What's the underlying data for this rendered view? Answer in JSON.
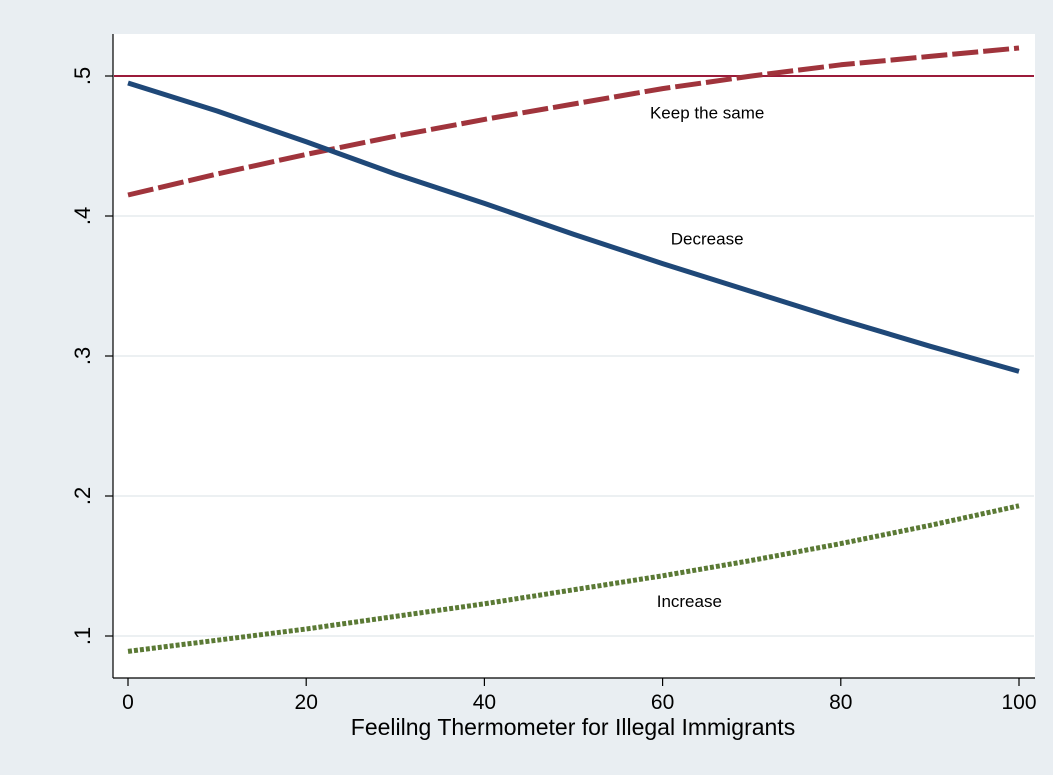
{
  "chart_data": {
    "type": "line",
    "title": "",
    "xlabel": "Feelilng Thermometer for Illegal Immigrants",
    "ylabel": "",
    "xlim": [
      0,
      100
    ],
    "ylim": [
      0.09,
      0.53
    ],
    "grid": true,
    "x_ticks": [
      0,
      20,
      40,
      60,
      80,
      100
    ],
    "x_tick_labels": [
      "0",
      "20",
      "40",
      "60",
      "80",
      "100"
    ],
    "y_ticks": [
      0.1,
      0.2,
      0.3,
      0.4,
      0.5
    ],
    "y_tick_labels": [
      ".1",
      ".2",
      ".3",
      ".4",
      ".5"
    ],
    "reference_line": {
      "y": 0.5,
      "color": "#9b1b3a"
    },
    "series": [
      {
        "name": "Keep the same",
        "color": "#a0343c",
        "style": "dashed",
        "x": [
          0,
          10,
          20,
          30,
          40,
          50,
          60,
          70,
          80,
          90,
          100
        ],
        "values": [
          0.415,
          0.43,
          0.444,
          0.457,
          0.469,
          0.48,
          0.491,
          0.5,
          0.508,
          0.514,
          0.52
        ]
      },
      {
        "name": "Decrease",
        "color": "#1f4878",
        "style": "solid",
        "x": [
          0,
          10,
          20,
          30,
          40,
          50,
          60,
          70,
          80,
          90,
          100
        ],
        "values": [
          0.495,
          0.475,
          0.453,
          0.43,
          0.409,
          0.387,
          0.366,
          0.346,
          0.326,
          0.307,
          0.289
        ]
      },
      {
        "name": "Increase",
        "color": "#5b7a35",
        "style": "dotted",
        "x": [
          0,
          10,
          20,
          30,
          40,
          50,
          60,
          70,
          80,
          90,
          100
        ],
        "values": [
          0.089,
          0.097,
          0.105,
          0.114,
          0.123,
          0.133,
          0.143,
          0.154,
          0.166,
          0.179,
          0.193
        ]
      }
    ],
    "annotations": [
      {
        "text": "Keep the same",
        "x": 65,
        "y": 0.473
      },
      {
        "text": "Decrease",
        "x": 65,
        "y": 0.383
      },
      {
        "text": "Increase",
        "x": 63,
        "y": 0.124
      }
    ]
  }
}
